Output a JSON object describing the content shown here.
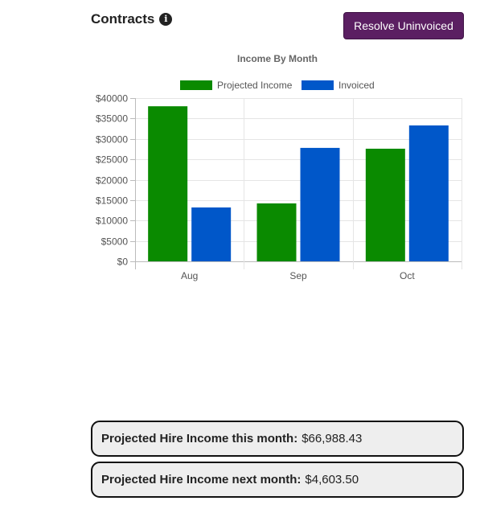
{
  "header": {
    "title": "Contracts",
    "info_icon": "info-circle-icon",
    "resolve_button_label": "Resolve Uninvoiced"
  },
  "colors": {
    "button_bg": "#5b1f62",
    "projected": "#0a8a00",
    "invoiced": "#0057c9"
  },
  "chart_data": {
    "type": "bar",
    "title": "Income By Month",
    "categories": [
      "Aug",
      "Sep",
      "Oct"
    ],
    "series": [
      {
        "name": "Projected Income",
        "color": "#0a8a00",
        "values": [
          38000,
          14200,
          27600
        ]
      },
      {
        "name": "Invoiced",
        "color": "#0057c9",
        "values": [
          13200,
          27800,
          33300
        ]
      }
    ],
    "yticks": [
      0,
      5000,
      10000,
      15000,
      20000,
      25000,
      30000,
      35000,
      40000
    ],
    "ytick_labels": [
      "$0",
      "$5000",
      "$10000",
      "$15000",
      "$20000",
      "$25000",
      "$30000",
      "$35000",
      "$40000"
    ],
    "ylim": [
      0,
      40000
    ],
    "legend_position": "top",
    "grid": true
  },
  "stats": {
    "this_month_label": "Projected Hire Income this month:",
    "this_month_value": "$66,988.43",
    "next_month_label": "Projected Hire Income next month:",
    "next_month_value": "$4,603.50"
  }
}
